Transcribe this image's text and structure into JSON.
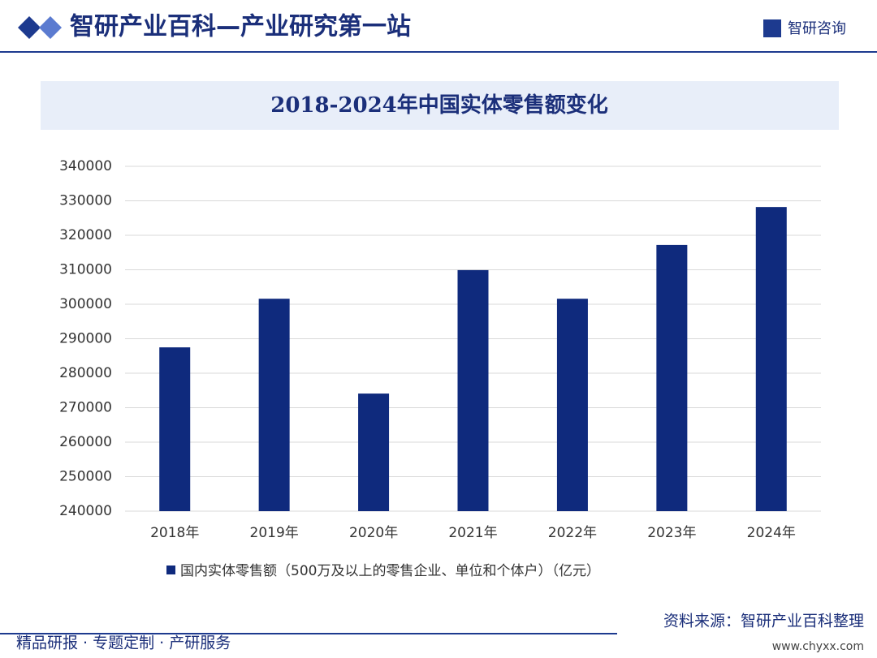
{
  "header": {
    "title": "智研产业百科—产业研究第一站",
    "logo": "智研咨询"
  },
  "chart_data": {
    "type": "bar",
    "title": "2018-2024年中国实体零售额变化",
    "categories": [
      "2018年",
      "2019年",
      "2020年",
      "2021年",
      "2022年",
      "2023年",
      "2024年"
    ],
    "series": [
      {
        "name": "国内实体零售额（500万及以上的零售企业、单位和个体户）（亿元）",
        "color": "#0f2a7d",
        "values": [
          287500,
          301600,
          274100,
          309900,
          301600,
          317200,
          328200
        ]
      }
    ],
    "ylim": [
      240000,
      340000
    ],
    "yticks": [
      240000,
      250000,
      260000,
      270000,
      280000,
      290000,
      300000,
      310000,
      320000,
      330000,
      340000
    ],
    "grid": true,
    "source": "资料来源：智研产业百科整理"
  },
  "footer": {
    "slogan": "精品研报 · 专题定制 · 产研服务",
    "url": "www.chyxx.com"
  }
}
